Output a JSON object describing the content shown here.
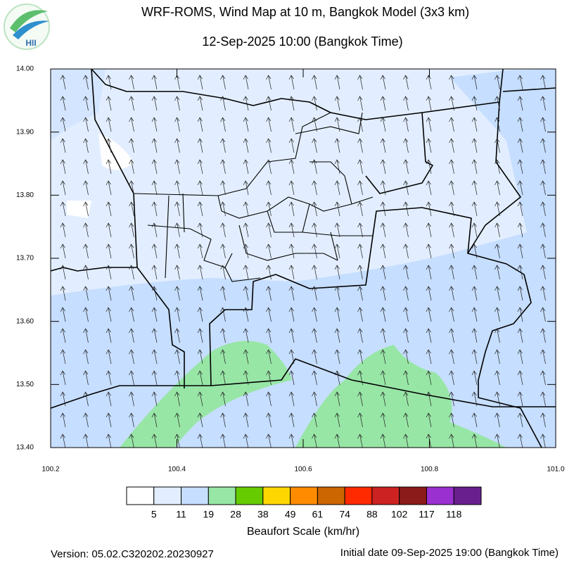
{
  "header": {
    "title": "WRF-ROMS, Wind Map at 10 m, Bangkok Model (3x3 km)",
    "subtitle": "12-Sep-2025 10:00 (Bangkok Time)"
  },
  "logo": {
    "text": "HII"
  },
  "map": {
    "xlim": [
      100.2,
      101.0
    ],
    "ylim": [
      13.4,
      14.0
    ],
    "xticks": [
      100.2,
      100.4,
      100.6,
      100.8,
      {
        "value": 101,
        "label": "101.0"
      }
    ],
    "yticks": [
      {
        "value": 14,
        "label": "14.00"
      },
      {
        "value": 13.9,
        "label": "13.90"
      },
      {
        "value": 13.8,
        "label": "13.80"
      },
      {
        "value": 13.7,
        "label": "13.70"
      },
      {
        "value": 13.6,
        "label": "13.60"
      },
      {
        "value": 13.5,
        "label": "13.50"
      },
      {
        "value": 13.4,
        "label": "13.40"
      }
    ]
  },
  "colorbar": {
    "title": "Beaufort Scale (km/hr)",
    "colors": [
      "#ffffff",
      "#e2eeff",
      "#c6deff",
      "#98e6a6",
      "#66cc00",
      "#ffd700",
      "#ff8c00",
      "#cc6600",
      "#ff2a00",
      "#cc2222",
      "#8b1a1a",
      "#9b30d0",
      "#6a1f8f"
    ],
    "labels": [
      5,
      11,
      19,
      28,
      38,
      49,
      61,
      74,
      88,
      102,
      117,
      118
    ]
  },
  "footer": {
    "version": "Version: 05.02.C320202.20230927",
    "initial_date": "Initial date 09-Sep-2025 19:00 (Bangkok Time)"
  }
}
